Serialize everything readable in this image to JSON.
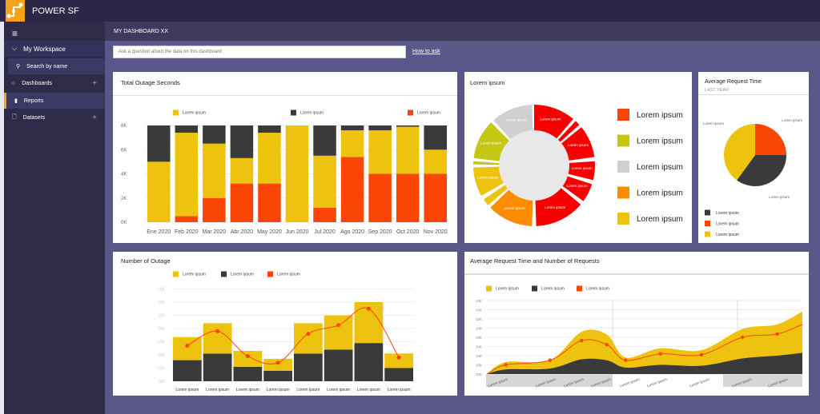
{
  "app": {
    "title": "POWER SF"
  },
  "sidebar": {
    "items": [
      {
        "label": "My Workspace"
      },
      {
        "label": "Search by name"
      },
      {
        "label": "Dashboards"
      },
      {
        "label": "Reports"
      },
      {
        "label": "Datasets"
      }
    ]
  },
  "header": {
    "title": "MY DASHBOARD XX"
  },
  "qa": {
    "placeholder": "Ask a question about the data on this dashboard",
    "how_to": "How to ask"
  },
  "colors": {
    "yellow": "#eec30f",
    "dark": "#3a3a3a",
    "orange": "#fa4604",
    "accent": "#f6a21b"
  },
  "chart_data": [
    {
      "id": "outage-seconds",
      "type": "bar",
      "stacked": true,
      "title": "Total Outage Seconds",
      "ylim": [
        0,
        8
      ],
      "yticks": [
        "0K",
        "2K",
        "4K",
        "6K",
        "8K"
      ],
      "categories": [
        "Ene 2020",
        "Feb 2020",
        "Mar 2020",
        "Abr 2020",
        "May 2020",
        "Jun 2020",
        "Jul 2020",
        "Ago 2020",
        "Sep 2020",
        "Oct 2020",
        "Nov 2020"
      ],
      "series": [
        {
          "name": "Lorem ipsum",
          "color": "#fa4604",
          "values": [
            0,
            0.5,
            2,
            3.2,
            3.2,
            0,
            1.2,
            5.4,
            4,
            4,
            4
          ]
        },
        {
          "name": "Lorem ipsum",
          "color": "#eec30f",
          "values": [
            5,
            6.9,
            4.5,
            2.1,
            4.2,
            8,
            4.3,
            2.2,
            3.6,
            3.9,
            2
          ]
        },
        {
          "name": "Lorem ipsum",
          "color": "#3a3a3a",
          "values": [
            3,
            0.6,
            1.5,
            2.7,
            0.6,
            0,
            2.5,
            0.4,
            0.4,
            0.1,
            2
          ]
        }
      ],
      "legend": [
        {
          "name": "Lorem ipsum",
          "color": "#eec30f"
        },
        {
          "name": "Lorem ipsum",
          "color": "#3a3a3a"
        },
        {
          "name": "Lorem ipsum",
          "color": "#fa4604"
        }
      ]
    },
    {
      "id": "donut",
      "type": "pie",
      "title": "Lorem ipsum",
      "segments": [
        {
          "start": 0,
          "end": 40,
          "color": "#f80000",
          "label": "Lorem ipsum"
        },
        {
          "start": 43,
          "end": 48,
          "color": "#f80000",
          "label": ""
        },
        {
          "start": 51,
          "end": 82,
          "color": "#f80000",
          "label": "Lorem ipsum"
        },
        {
          "start": 86,
          "end": 104,
          "color": "#f80000",
          "label": "Lorem ipsum"
        },
        {
          "start": 108,
          "end": 126,
          "color": "#f80000",
          "label": "Lorem ipsum"
        },
        {
          "start": 130,
          "end": 178,
          "color": "#f80000",
          "label": "Lorem ipsum"
        },
        {
          "start": 182,
          "end": 226,
          "color": "#ff8c00",
          "label": "Lorem ipsum"
        },
        {
          "start": 229,
          "end": 236,
          "color": "#eec30f",
          "label": ""
        },
        {
          "start": 240,
          "end": 268,
          "color": "#eec30f",
          "label": "Lorem ipsum"
        },
        {
          "start": 271,
          "end": 274,
          "color": "#c4c814",
          "label": ""
        },
        {
          "start": 277,
          "end": 315,
          "color": "#c4c814",
          "label": "Lorem ipsum"
        },
        {
          "start": 318,
          "end": 358,
          "color": "#d0d0d0",
          "label": "Lorem ipsum"
        }
      ],
      "legend": [
        {
          "name": "Lorem ipsum",
          "color": "#fa4604"
        },
        {
          "name": "Lorem ipsum",
          "color": "#c4c814"
        },
        {
          "name": "Lorem ipsum",
          "color": "#d0d0d0"
        },
        {
          "name": "Lorem ipsum",
          "color": "#ff8c00"
        },
        {
          "name": "Lorem ipsum",
          "color": "#eec30f"
        }
      ]
    },
    {
      "id": "avg-request",
      "type": "pie",
      "title": "Average Request Time",
      "subtitle": "LAST YEAR",
      "slices": [
        {
          "name": "Lorem ipsum",
          "value": 25,
          "color": "#fa4604"
        },
        {
          "name": "Lorem ipsum",
          "value": 35,
          "color": "#3a3a3a"
        },
        {
          "name": "Lorem ipsum",
          "value": 40,
          "color": "#eec30f"
        }
      ],
      "legend": [
        {
          "name": "Lorem ipsum",
          "color": "#3a3a3a"
        },
        {
          "name": "Lorem ipsum",
          "color": "#fa4604"
        },
        {
          "name": "Lorem ipsum",
          "color": "#eec30f"
        }
      ]
    },
    {
      "id": "num-outage",
      "type": "bar",
      "stacked": true,
      "title": "Number of Outage",
      "ylim": [
        0,
        7
      ],
      "yticks": [
        "10K",
        "10K",
        "10K",
        "10K",
        "10K",
        "10K",
        "10K",
        "10K"
      ],
      "categories": [
        "Lorem ipsum",
        "Lorem ipsum",
        "Lorem ipsum",
        "Lorem ipsum",
        "Lorem ipsum",
        "Lorem ipsum",
        "Lorem ipsum",
        "Lorem ipsum"
      ],
      "series": [
        {
          "name": "Lorem ipsum",
          "color": "#3a3a3a",
          "values": [
            1.6,
            2.1,
            1.1,
            0.8,
            2.1,
            2.4,
            2.9,
            1.0
          ]
        },
        {
          "name": "Lorem ipsum",
          "color": "#eec30f",
          "values": [
            1.75,
            2.3,
            1.2,
            0.9,
            2.3,
            2.6,
            3.1,
            1.1
          ]
        }
      ],
      "line": {
        "name": "Lorem ipsum",
        "color": "#fa4604",
        "values": [
          2.7,
          3.8,
          1.9,
          1.4,
          3.6,
          4.25,
          5.5,
          1.8
        ]
      },
      "legend": [
        {
          "name": "Lorem ipsum",
          "color": "#eec30f"
        },
        {
          "name": "Lorem ipsum",
          "color": "#3a3a3a"
        },
        {
          "name": "Lorem ipsum",
          "color": "#fa4604"
        }
      ]
    },
    {
      "id": "request-area",
      "type": "area",
      "title": "Average Request Time and Number of Requests",
      "ylim": [
        0,
        8
      ],
      "yticks": [
        "10K",
        "10K",
        "10K",
        "10K",
        "10K",
        "10K",
        "10K",
        "10K",
        "10K"
      ],
      "x": [
        0,
        6,
        20,
        30,
        38,
        44,
        55,
        68,
        81,
        92,
        100
      ],
      "series": [
        {
          "name": "Lorem ipsum",
          "color": "#eec30f",
          "values": [
            0,
            1.3,
            1.5,
            4.6,
            4.3,
            1.8,
            2.8,
            2.6,
            4.9,
            5.4,
            6.8
          ]
        },
        {
          "name": "Lorem ipsum",
          "color": "#3a3a3a",
          "values": [
            0,
            0.5,
            0.6,
            1.6,
            1.5,
            0.7,
            1.0,
            0.9,
            1.7,
            2.0,
            2.3
          ]
        }
      ],
      "line": {
        "name": "Lorem ipsum",
        "color": "#fa4604",
        "values": [
          0,
          1.0,
          1.5,
          3.65,
          3.2,
          1.5,
          2.2,
          2.1,
          4.0,
          4.35,
          5.4
        ]
      },
      "xlabels": [
        "Lorem ipsum",
        "Lorem ipsum",
        "Lorem ipsum",
        "Lorem ipsum",
        "Lorem ipsum",
        "Lorem ipsum",
        "Lorem ipsum",
        "Lorem ipsum",
        "Lorem ipsum"
      ],
      "legend": [
        {
          "name": "Lorem ipsum",
          "color": "#eec30f"
        },
        {
          "name": "Lorem ipsum",
          "color": "#3a3a3a"
        },
        {
          "name": "Lorem ipsum",
          "color": "#fa4604"
        }
      ]
    }
  ]
}
